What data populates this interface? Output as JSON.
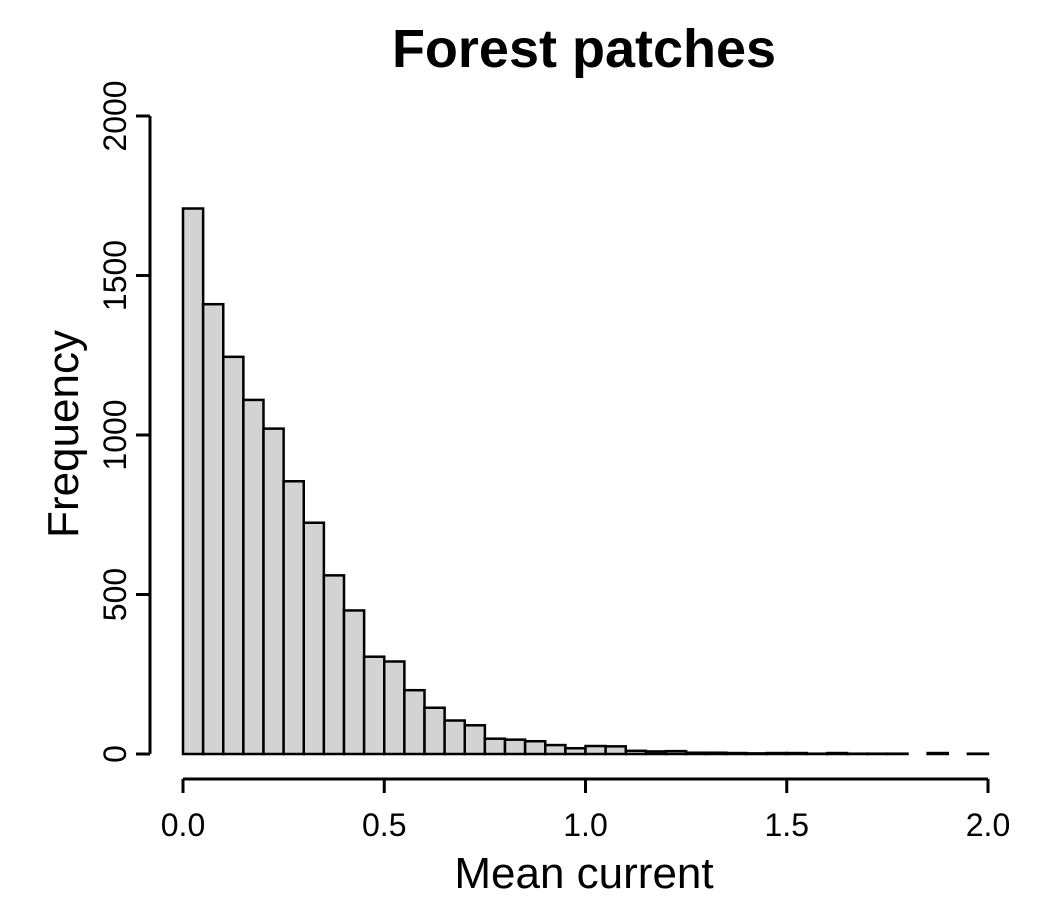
{
  "chart_data": {
    "type": "bar",
    "title": "Forest patches",
    "xlabel": "Mean current",
    "ylabel": "Frequency",
    "xlim": [
      0,
      2
    ],
    "ylim": [
      0,
      2000
    ],
    "x_ticks": [
      "0.0",
      "0.5",
      "1.0",
      "1.5",
      "2.0"
    ],
    "y_ticks": [
      "0",
      "500",
      "1000",
      "1500",
      "2000"
    ],
    "grid": false,
    "bar_fill": "#d3d3d3",
    "bar_stroke": "#000000",
    "bin_width": 0.05,
    "bins": [
      {
        "x0": 0.0,
        "x1": 0.05,
        "count": 1710
      },
      {
        "x0": 0.05,
        "x1": 0.1,
        "count": 1410
      },
      {
        "x0": 0.1,
        "x1": 0.15,
        "count": 1245
      },
      {
        "x0": 0.15,
        "x1": 0.2,
        "count": 1110
      },
      {
        "x0": 0.2,
        "x1": 0.25,
        "count": 1020
      },
      {
        "x0": 0.25,
        "x1": 0.3,
        "count": 855
      },
      {
        "x0": 0.3,
        "x1": 0.35,
        "count": 725
      },
      {
        "x0": 0.35,
        "x1": 0.4,
        "count": 560
      },
      {
        "x0": 0.4,
        "x1": 0.45,
        "count": 450
      },
      {
        "x0": 0.45,
        "x1": 0.5,
        "count": 305
      },
      {
        "x0": 0.5,
        "x1": 0.55,
        "count": 290
      },
      {
        "x0": 0.55,
        "x1": 0.6,
        "count": 200
      },
      {
        "x0": 0.6,
        "x1": 0.65,
        "count": 145
      },
      {
        "x0": 0.65,
        "x1": 0.7,
        "count": 105
      },
      {
        "x0": 0.7,
        "x1": 0.75,
        "count": 90
      },
      {
        "x0": 0.75,
        "x1": 0.8,
        "count": 48
      },
      {
        "x0": 0.8,
        "x1": 0.85,
        "count": 45
      },
      {
        "x0": 0.85,
        "x1": 0.9,
        "count": 40
      },
      {
        "x0": 0.9,
        "x1": 0.95,
        "count": 28
      },
      {
        "x0": 0.95,
        "x1": 1.0,
        "count": 18
      },
      {
        "x0": 1.0,
        "x1": 1.05,
        "count": 25
      },
      {
        "x0": 1.05,
        "x1": 1.1,
        "count": 24
      },
      {
        "x0": 1.1,
        "x1": 1.15,
        "count": 10
      },
      {
        "x0": 1.15,
        "x1": 1.2,
        "count": 8
      },
      {
        "x0": 1.2,
        "x1": 1.25,
        "count": 9
      },
      {
        "x0": 1.25,
        "x1": 1.3,
        "count": 4
      },
      {
        "x0": 1.3,
        "x1": 1.35,
        "count": 4
      },
      {
        "x0": 1.35,
        "x1": 1.4,
        "count": 3
      },
      {
        "x0": 1.4,
        "x1": 1.45,
        "count": 2
      },
      {
        "x0": 1.45,
        "x1": 1.5,
        "count": 3
      },
      {
        "x0": 1.5,
        "x1": 1.55,
        "count": 3
      },
      {
        "x0": 1.55,
        "x1": 1.6,
        "count": 1
      },
      {
        "x0": 1.6,
        "x1": 1.65,
        "count": 3
      },
      {
        "x0": 1.65,
        "x1": 1.7,
        "count": 1
      },
      {
        "x0": 1.7,
        "x1": 1.75,
        "count": 1
      },
      {
        "x0": 1.75,
        "x1": 1.8,
        "count": 1
      },
      {
        "x0": 1.8,
        "x1": 1.85,
        "count": 0
      },
      {
        "x0": 1.85,
        "x1": 1.9,
        "count": 3
      },
      {
        "x0": 1.9,
        "x1": 1.95,
        "count": 0
      },
      {
        "x0": 1.95,
        "x1": 2.0,
        "count": 1
      }
    ]
  }
}
